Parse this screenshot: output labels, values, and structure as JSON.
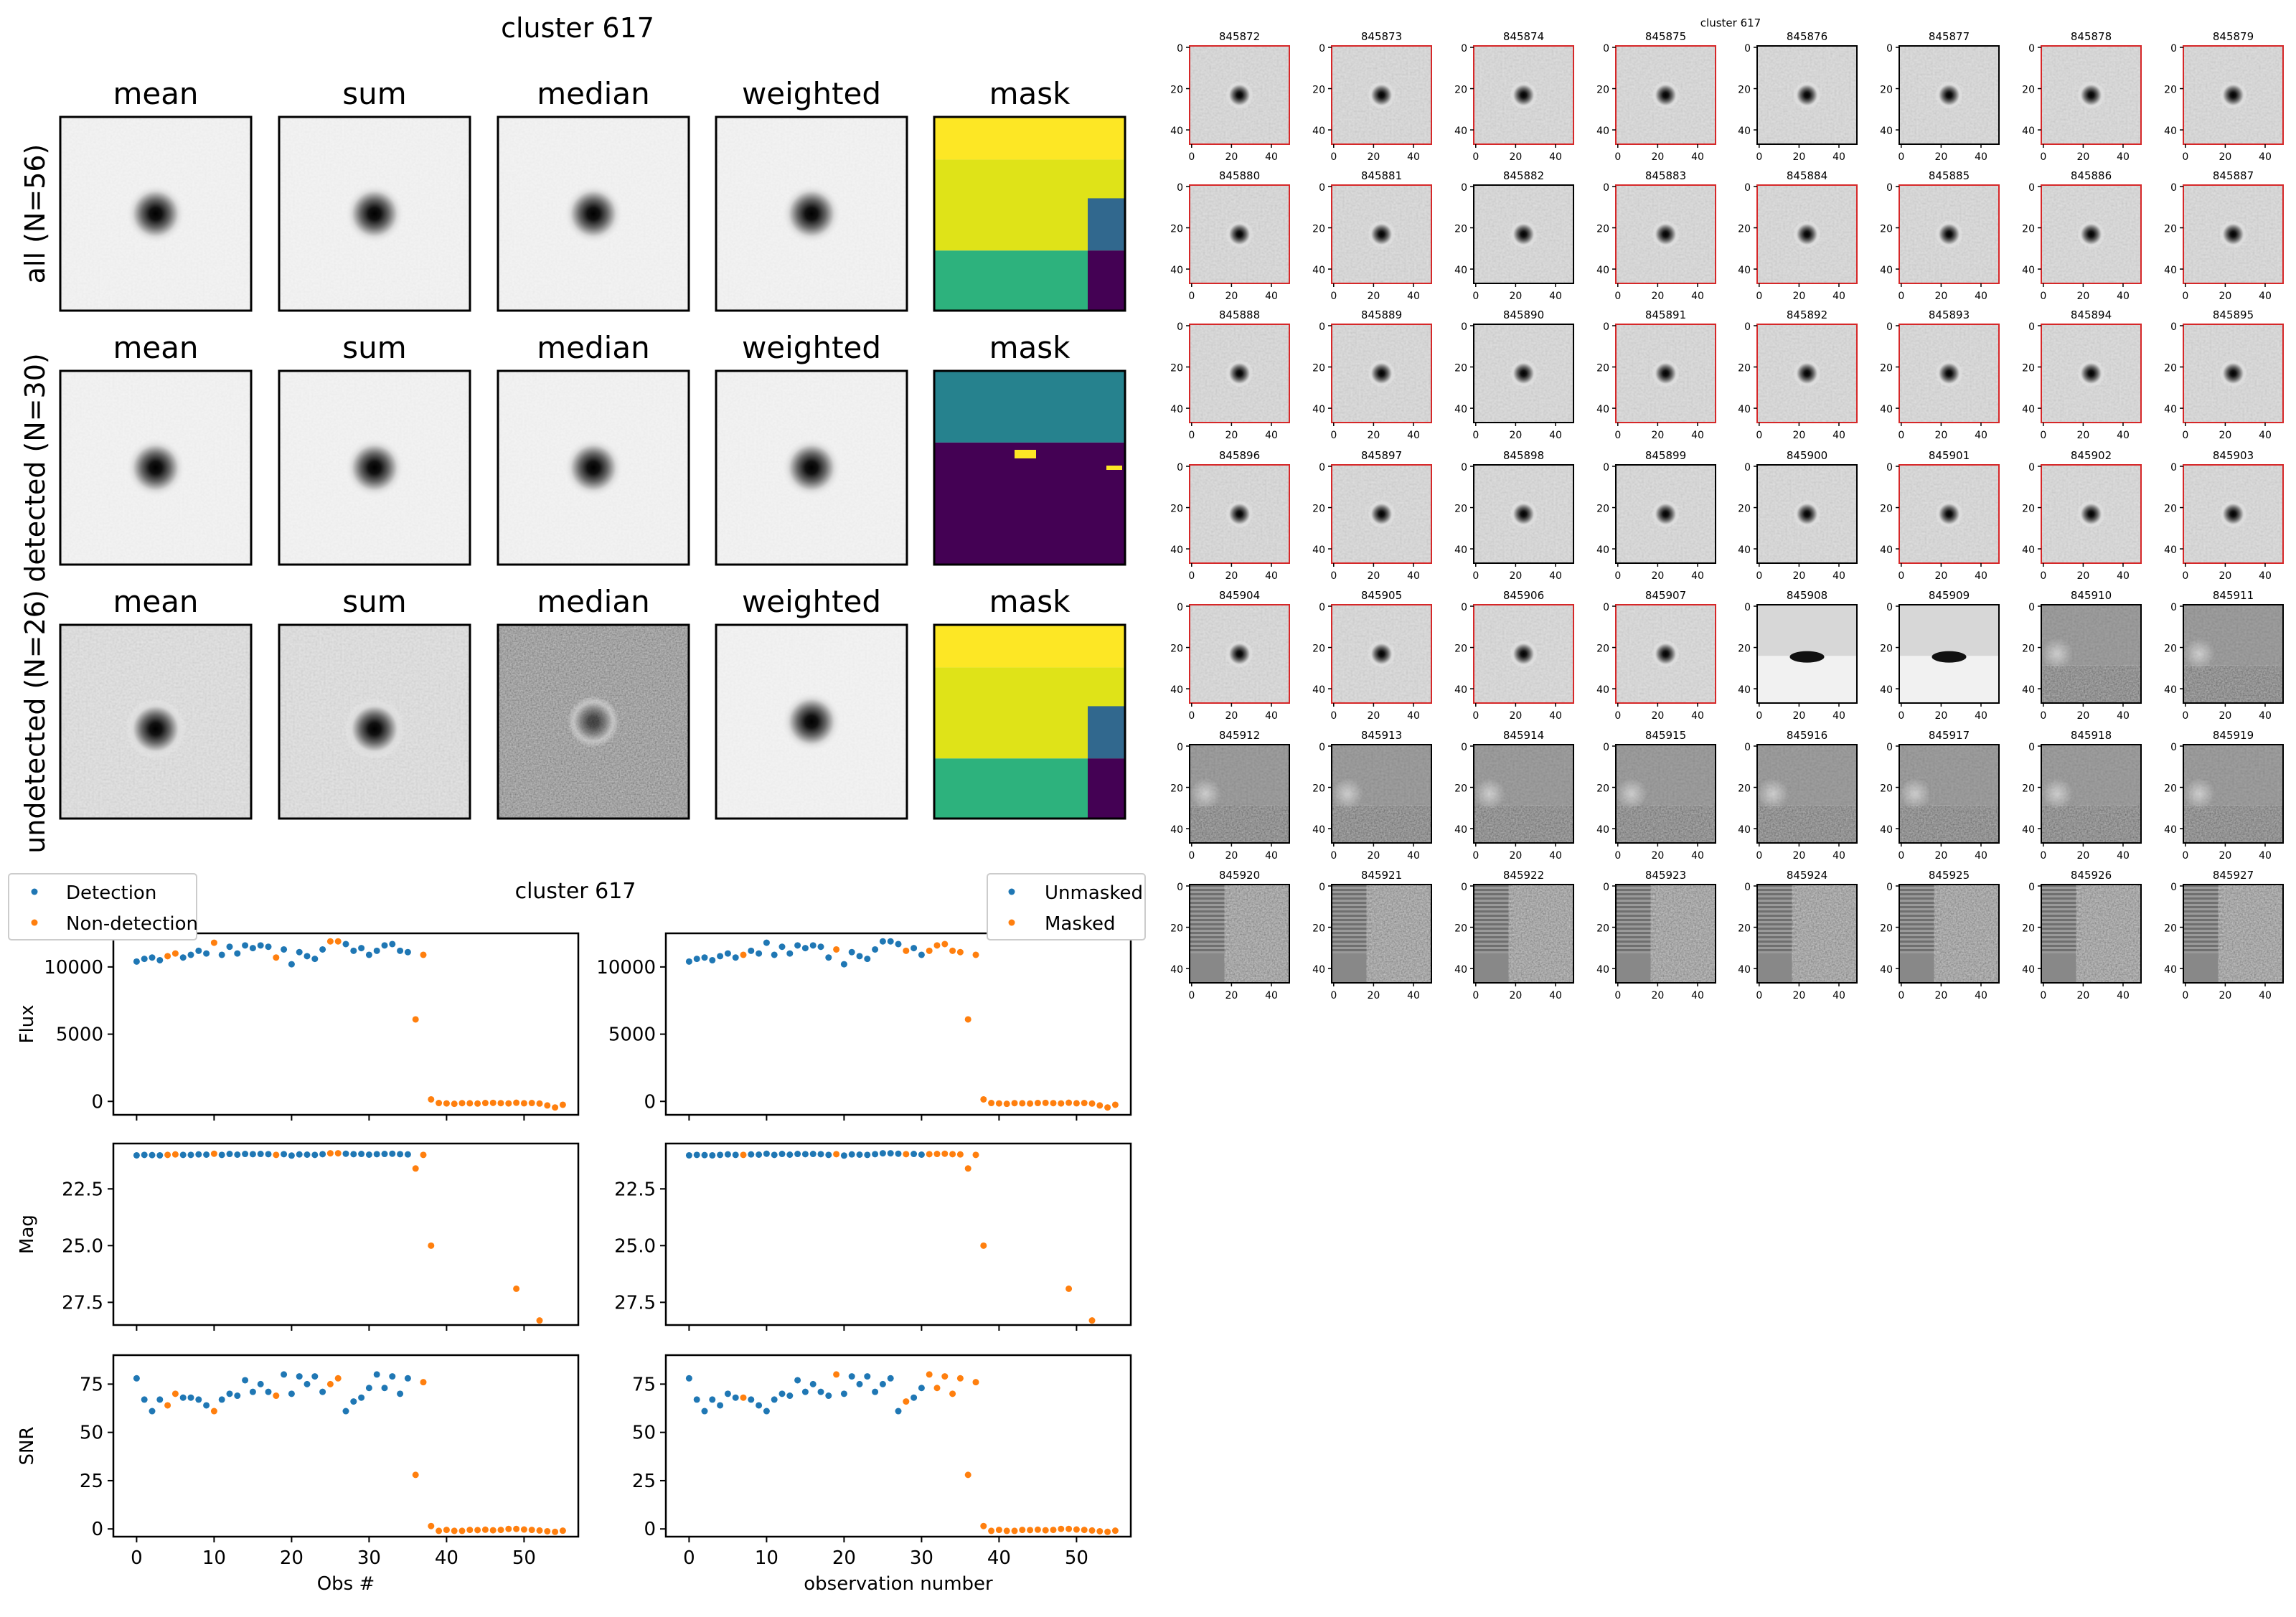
{
  "stack_panel": {
    "title": "cluster 617",
    "columns": [
      "mean",
      "sum",
      "median",
      "weighted",
      "mask"
    ],
    "rows": [
      {
        "label": "all (N=56)",
        "mask_bands": [
          {
            "color": "#fde725",
            "frac": 0.22
          },
          {
            "color": "#dfe318",
            "frac": 0.47
          },
          {
            "color": "#2db27d",
            "frac": 0.31
          }
        ],
        "mask_side": {
          "color_top": "#31688e",
          "color_bottom": "#440154"
        }
      },
      {
        "label": "detected (N=30)",
        "mask_bands": [
          {
            "color": "#26828e",
            "frac": 0.37
          },
          {
            "color": "#440154",
            "frac": 0.63
          }
        ]
      },
      {
        "label": "undetected (N=26)",
        "mask_bands": [
          {
            "color": "#fde725",
            "frac": 0.22
          },
          {
            "color": "#dfe318",
            "frac": 0.47
          },
          {
            "color": "#2db27d",
            "frac": 0.31
          }
        ],
        "mask_side": {
          "color_top": "#31688e",
          "color_bottom": "#440154"
        }
      }
    ],
    "cell_kinds": [
      [
        "smooth",
        "smooth",
        "smooth",
        "smooth",
        "mask"
      ],
      [
        "smooth",
        "smooth",
        "smooth",
        "smooth",
        "mask"
      ],
      [
        "noisy",
        "noisy",
        "verynoisy",
        "smooth",
        "mask"
      ]
    ]
  },
  "cutout_grid": {
    "title": "cluster 617",
    "ids": [
      "845872",
      "845873",
      "845874",
      "845875",
      "845876",
      "845877",
      "845878",
      "845879",
      "845880",
      "845881",
      "845882",
      "845883",
      "845884",
      "845885",
      "845886",
      "845887",
      "845888",
      "845889",
      "845890",
      "845891",
      "845892",
      "845893",
      "845894",
      "845895",
      "845896",
      "845897",
      "845898",
      "845899",
      "845900",
      "845901",
      "845902",
      "845903",
      "845904",
      "845905",
      "845906",
      "845907",
      "845908",
      "845909",
      "845910",
      "845911",
      "845912",
      "845913",
      "845914",
      "845915",
      "845916",
      "845917",
      "845918",
      "845919",
      "845920",
      "845921",
      "845922",
      "845923",
      "845924",
      "845925",
      "845926",
      "845927"
    ],
    "kinds": [
      "star",
      "star",
      "star",
      "star",
      "star",
      "star",
      "star",
      "star",
      "star",
      "star",
      "star",
      "star",
      "star",
      "star",
      "star",
      "star",
      "star",
      "star",
      "star",
      "star",
      "star",
      "star",
      "star",
      "star",
      "star",
      "star",
      "star",
      "star",
      "star",
      "star",
      "star",
      "star",
      "star",
      "star",
      "star",
      "star",
      "edge",
      "edge",
      "split",
      "split",
      "split",
      "split",
      "split",
      "split",
      "split",
      "split",
      "split",
      "split",
      "stripe",
      "stripe",
      "stripe",
      "stripe",
      "stripe",
      "stripe",
      "stripe",
      "stripe"
    ],
    "red_border": [
      true,
      true,
      true,
      true,
      false,
      false,
      true,
      true,
      true,
      true,
      false,
      true,
      true,
      true,
      true,
      true,
      true,
      true,
      false,
      true,
      true,
      true,
      true,
      true,
      true,
      true,
      false,
      false,
      false,
      true,
      true,
      true,
      true,
      true,
      true,
      true,
      false,
      false,
      false,
      false,
      false,
      false,
      false,
      false,
      false,
      false,
      false,
      false,
      false,
      false,
      false,
      false,
      false,
      false,
      false,
      false
    ],
    "x_ticks": [
      "0",
      "20",
      "40"
    ],
    "y_ticks": [
      "0",
      "20",
      "40"
    ]
  },
  "chart_data": [
    {
      "type": "scatter",
      "panel": "left-flux",
      "title": "cluster 617",
      "xlabel": "",
      "ylabel": "Flux",
      "xlim": [
        -3,
        57
      ],
      "ylim": [
        -1000,
        12500
      ],
      "yticks": [
        "0",
        "5000",
        "10000"
      ],
      "legend": [
        "Detection",
        "Non-detection"
      ],
      "legend_placement": "top-left outside",
      "series": [
        {
          "name": "Detection",
          "color": "#1f77b4"
        },
        {
          "name": "Non-detection",
          "color": "#ff7f0e"
        }
      ]
    },
    {
      "type": "scatter",
      "panel": "left-mag",
      "ylabel": "Mag",
      "xlim": [
        -3,
        57
      ],
      "ylim": [
        28.5,
        20.5
      ],
      "yticks": [
        "22.5",
        "25.0",
        "27.5"
      ]
    },
    {
      "type": "scatter",
      "panel": "left-snr",
      "ylabel": "SNR",
      "xlabel": "Obs #",
      "xlim": [
        -3,
        57
      ],
      "ylim": [
        -4,
        90
      ],
      "yticks": [
        "0",
        "25",
        "50",
        "75"
      ],
      "xticks": [
        "0",
        "10",
        "20",
        "30",
        "40",
        "50"
      ]
    },
    {
      "type": "scatter",
      "panel": "right-flux",
      "ylabel": "",
      "xlim": [
        -3,
        57
      ],
      "ylim": [
        -1000,
        12500
      ],
      "yticks": [
        "0",
        "5000",
        "10000"
      ],
      "legend": [
        "Unmasked",
        "Masked"
      ],
      "legend_placement": "top-right outside",
      "series": [
        {
          "name": "Unmasked",
          "color": "#1f77b4"
        },
        {
          "name": "Masked",
          "color": "#ff7f0e"
        }
      ]
    },
    {
      "type": "scatter",
      "panel": "right-mag",
      "ylabel": "",
      "xlim": [
        -3,
        57
      ],
      "ylim": [
        28.5,
        20.5
      ],
      "yticks": [
        "22.5",
        "25.0",
        "27.5"
      ]
    },
    {
      "type": "scatter",
      "panel": "right-snr",
      "ylabel": "",
      "xlabel": "observation number",
      "xlim": [
        -3,
        57
      ],
      "ylim": [
        -4,
        90
      ],
      "yticks": [
        "0",
        "25",
        "50",
        "75"
      ],
      "xticks": [
        "0",
        "10",
        "20",
        "30",
        "40",
        "50"
      ]
    }
  ],
  "observations": {
    "obs": [
      0,
      1,
      2,
      3,
      4,
      5,
      6,
      7,
      8,
      9,
      10,
      11,
      12,
      13,
      14,
      15,
      16,
      17,
      18,
      19,
      20,
      21,
      22,
      23,
      24,
      25,
      26,
      27,
      28,
      29,
      30,
      31,
      32,
      33,
      34,
      35,
      36,
      37,
      38,
      39,
      40,
      41,
      42,
      43,
      44,
      45,
      46,
      47,
      48,
      49,
      50,
      51,
      52,
      53,
      54,
      55
    ],
    "flux": [
      10400,
      10600,
      10700,
      10500,
      10800,
      11000,
      10700,
      10900,
      11200,
      11000,
      11800,
      10900,
      11500,
      11000,
      11600,
      11400,
      11600,
      11500,
      10700,
      11300,
      10200,
      11100,
      10800,
      10600,
      11300,
      11900,
      11900,
      11700,
      11200,
      11400,
      10900,
      11200,
      11600,
      11700,
      11200,
      11100,
      6100,
      10900,
      150,
      -120,
      -150,
      -180,
      -130,
      -140,
      -160,
      -120,
      -110,
      -130,
      -150,
      -100,
      -140,
      -120,
      -160,
      -300,
      -450,
      -250
    ],
    "mag": [
      21.02,
      21.0,
      21.01,
      21.02,
      21.0,
      20.98,
      21.0,
      21.0,
      20.98,
      20.99,
      20.95,
      21.0,
      20.96,
      20.99,
      20.96,
      20.97,
      20.96,
      20.97,
      21.0,
      20.97,
      21.03,
      20.98,
      20.99,
      21.0,
      20.97,
      20.93,
      20.93,
      20.95,
      20.97,
      20.96,
      20.99,
      20.97,
      20.96,
      20.95,
      20.97,
      20.98,
      21.6,
      21.0,
      25.0,
      null,
      null,
      null,
      null,
      null,
      null,
      null,
      null,
      null,
      null,
      26.9,
      null,
      null,
      28.3,
      null,
      null,
      null
    ],
    "snr": [
      78,
      67,
      61,
      67,
      64,
      70,
      68,
      68,
      67,
      64,
      61,
      67,
      70,
      69,
      77,
      71,
      75,
      71,
      69,
      80,
      70,
      79,
      75,
      79,
      71,
      75,
      78,
      61,
      66,
      68,
      73,
      80,
      73,
      79,
      70,
      78,
      28,
      76,
      1.5,
      -1,
      -0.5,
      -1,
      -1,
      -0.5,
      -0.6,
      -0.4,
      -0.7,
      -0.5,
      0,
      0,
      -0.3,
      -0.5,
      -0.8,
      -1.2,
      -1.5,
      -0.9
    ],
    "detection": [
      1,
      1,
      1,
      1,
      0,
      0,
      1,
      1,
      1,
      1,
      0,
      1,
      1,
      1,
      1,
      1,
      1,
      1,
      0,
      1,
      1,
      1,
      1,
      1,
      1,
      0,
      0,
      1,
      1,
      1,
      1,
      1,
      1,
      1,
      1,
      1,
      0,
      0,
      0,
      0,
      0,
      0,
      0,
      0,
      0,
      0,
      0,
      0,
      0,
      0,
      0,
      0,
      0,
      0,
      0,
      0
    ],
    "unmasked": [
      1,
      1,
      1,
      1,
      1,
      1,
      1,
      0,
      1,
      1,
      1,
      1,
      1,
      1,
      1,
      1,
      1,
      1,
      1,
      0,
      1,
      1,
      1,
      1,
      1,
      1,
      1,
      1,
      0,
      1,
      1,
      0,
      0,
      0,
      0,
      0,
      0,
      0,
      0,
      0,
      0,
      0,
      0,
      0,
      0,
      0,
      0,
      0,
      0,
      0,
      0,
      0,
      0,
      0,
      0,
      0
    ]
  }
}
